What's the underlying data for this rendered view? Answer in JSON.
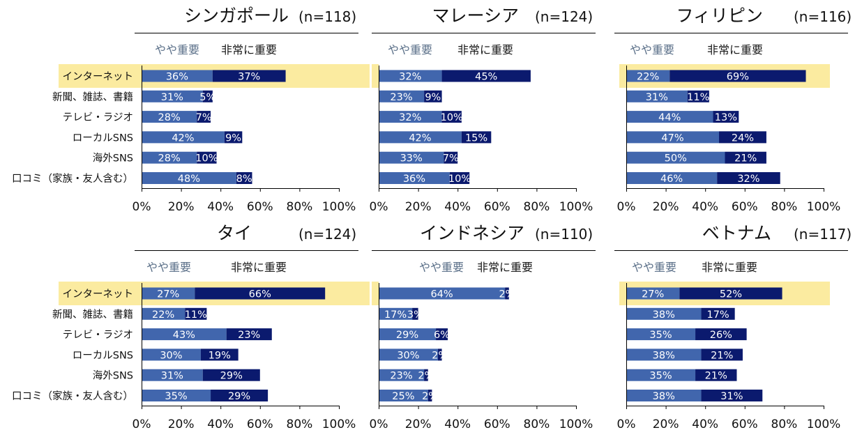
{
  "chart_data": [
    {
      "type": "bar",
      "stacked": true,
      "orientation": "horizontal",
      "title": "シンガポール",
      "n_label": "(n=118)",
      "categories": [
        "インターネット",
        "新聞、雑誌、書籍",
        "テレビ・ラジオ",
        "ローカルSNS",
        "海外SNS",
        "口コミ（家族・友人含む）"
      ],
      "series": [
        {
          "name": "やや重要",
          "values": [
            36,
            31,
            28,
            42,
            28,
            48
          ],
          "labels": [
            "36%",
            "31%",
            "28%",
            "42%",
            "28%",
            "48%"
          ]
        },
        {
          "name": "非常に重要",
          "values": [
            37,
            5,
            7,
            9,
            10,
            8
          ],
          "labels": [
            "37%",
            "5%",
            "7%",
            "9%",
            "10%",
            "8%"
          ]
        }
      ],
      "highlight_category": "インターネット",
      "xlim": [
        0,
        100
      ],
      "xticks": [
        "0%",
        "20%",
        "40%",
        "60%",
        "80%",
        "100%"
      ],
      "legend": "top-left"
    },
    {
      "type": "bar",
      "stacked": true,
      "orientation": "horizontal",
      "title": "マレーシア",
      "n_label": "(n=124)",
      "categories": [
        "インターネット",
        "新聞、雑誌、書籍",
        "テレビ・ラジオ",
        "ローカルSNS",
        "海外SNS",
        "口コミ（家族・友人含む）"
      ],
      "series": [
        {
          "name": "やや重要",
          "values": [
            32,
            23,
            32,
            42,
            33,
            36
          ],
          "labels": [
            "32%",
            "23%",
            "32%",
            "42%",
            "33%",
            "36%"
          ]
        },
        {
          "name": "非常に重要",
          "values": [
            45,
            9,
            10,
            15,
            7,
            10
          ],
          "labels": [
            "45%",
            "9%",
            "10%",
            "15%",
            "7%",
            "10%"
          ]
        }
      ],
      "highlight_category": "インターネット",
      "xlim": [
        0,
        100
      ],
      "xticks": [
        "0%",
        "20%",
        "40%",
        "60%",
        "80%",
        "100%"
      ],
      "legend": "top-left"
    },
    {
      "type": "bar",
      "stacked": true,
      "orientation": "horizontal",
      "title": "フィリピン",
      "n_label": "(n=116)",
      "categories": [
        "インターネット",
        "新聞、雑誌、書籍",
        "テレビ・ラジオ",
        "ローカルSNS",
        "海外SNS",
        "口コミ（家族・友人含む）"
      ],
      "series": [
        {
          "name": "やや重要",
          "values": [
            22,
            31,
            44,
            47,
            50,
            46
          ],
          "labels": [
            "22%",
            "31%",
            "44%",
            "47%",
            "50%",
            "46%"
          ]
        },
        {
          "name": "非常に重要",
          "values": [
            69,
            11,
            13,
            24,
            21,
            32
          ],
          "labels": [
            "69%",
            "11%",
            "13%",
            "24%",
            "21%",
            "32%"
          ]
        }
      ],
      "highlight_category": "インターネット",
      "xlim": [
        0,
        100
      ],
      "xticks": [
        "0%",
        "20%",
        "40%",
        "60%",
        "80%",
        "100%"
      ],
      "legend": "top-left"
    },
    {
      "type": "bar",
      "stacked": true,
      "orientation": "horizontal",
      "title": "タイ",
      "n_label": "(n=124)",
      "categories": [
        "インターネット",
        "新聞、雑誌、書籍",
        "テレビ・ラジオ",
        "ローカルSNS",
        "海外SNS",
        "口コミ（家族・友人含む）"
      ],
      "series": [
        {
          "name": "やや重要",
          "values": [
            27,
            22,
            43,
            30,
            31,
            35
          ],
          "labels": [
            "27%",
            "22%",
            "43%",
            "30%",
            "31%",
            "35%"
          ]
        },
        {
          "name": "非常に重要",
          "values": [
            66,
            11,
            23,
            19,
            29,
            29
          ],
          "labels": [
            "66%",
            "11%",
            "23%",
            "19%",
            "29%",
            "29%"
          ]
        }
      ],
      "highlight_category": "インターネット",
      "xlim": [
        0,
        100
      ],
      "xticks": [
        "0%",
        "20%",
        "40%",
        "60%",
        "80%",
        "100%"
      ],
      "legend": "top-left"
    },
    {
      "type": "bar",
      "stacked": true,
      "orientation": "horizontal",
      "title": "インドネシア",
      "n_label": "(n=110)",
      "categories": [
        "インターネット",
        "新聞、雑誌、書籍",
        "テレビ・ラジオ",
        "ローカルSNS",
        "海外SNS",
        "口コミ（家族・友人含む）"
      ],
      "series": [
        {
          "name": "やや重要",
          "values": [
            64,
            17,
            29,
            30,
            23,
            25
          ],
          "labels": [
            "64%",
            "17%",
            "29%",
            "30%",
            "23%",
            "25%"
          ]
        },
        {
          "name": "非常に重要",
          "values": [
            2,
            3,
            6,
            2,
            2,
            2
          ],
          "labels": [
            "2%",
            "3%",
            "6%",
            "2%",
            "2%",
            "2%"
          ]
        }
      ],
      "highlight_category": "インターネット",
      "xlim": [
        0,
        100
      ],
      "xticks": [
        "0%",
        "20%",
        "40%",
        "60%",
        "80%",
        "100%"
      ],
      "legend": "top-center"
    },
    {
      "type": "bar",
      "stacked": true,
      "orientation": "horizontal",
      "title": "ベトナム",
      "n_label": "(n=117)",
      "categories": [
        "インターネット",
        "新聞、雑誌、書籍",
        "テレビ・ラジオ",
        "ローカルSNS",
        "海外SNS",
        "口コミ（家族・友人含む）"
      ],
      "series": [
        {
          "name": "やや重要",
          "values": [
            27,
            38,
            35,
            38,
            35,
            38
          ],
          "labels": [
            "27%",
            "38%",
            "35%",
            "38%",
            "35%",
            "38%"
          ]
        },
        {
          "name": "非常に重要",
          "values": [
            52,
            17,
            26,
            21,
            21,
            31
          ],
          "labels": [
            "52%",
            "17%",
            "26%",
            "21%",
            "21%",
            "31%"
          ]
        }
      ],
      "highlight_category": "インターネット",
      "xlim": [
        0,
        100
      ],
      "xticks": [
        "0%",
        "20%",
        "40%",
        "60%",
        "80%",
        "100%"
      ],
      "legend": "top-left"
    }
  ],
  "colors": {
    "somewhat": "#4166ad",
    "very": "#0b1a6e",
    "highlight": "#fbeba0",
    "legend_somewhat_text": "#5a6f88",
    "legend_very_text": "#1a1a1a",
    "axis": "#000000",
    "label_text": "#ffffff"
  }
}
